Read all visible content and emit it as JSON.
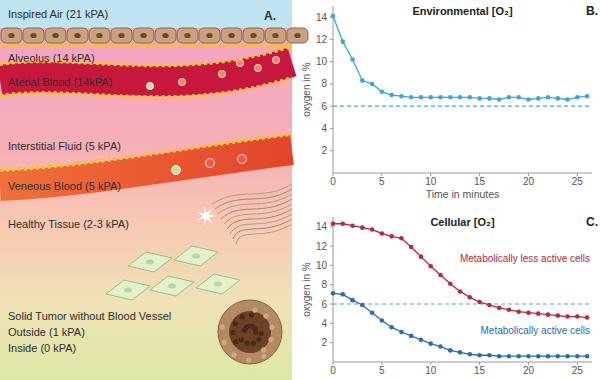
{
  "diagram": {
    "panel_label": "A.",
    "labels": [
      "Inspired Air (21 kPA)",
      "Alveolus (14 kPA)",
      "Aterial Blood (14kPA)",
      "Interstitial Fluid (5 kPA)",
      "Veneous Blood (5 kPA)",
      "Healthy Tissue (2-3 kPA)",
      "Solid Tumor without Blood Vessel",
      "Outside (1 kPA)",
      "Inside (0 kPA)"
    ]
  },
  "chart_data": [
    {
      "type": "line",
      "panel_label": "B.",
      "title": "Environmental [O₂]",
      "x_label": "Time in minutes",
      "y_label": "oxygen in %",
      "x": [
        0,
        1,
        2,
        3,
        4,
        5,
        6,
        7,
        8,
        9,
        10,
        11,
        12,
        13,
        14,
        15,
        16,
        17,
        18,
        19,
        20,
        21,
        22,
        23,
        24,
        25,
        26
      ],
      "series": [
        {
          "color": "#3aa6dd",
          "marker": "circle",
          "values": [
            14.1,
            11.8,
            10.2,
            8.3,
            8.0,
            7.3,
            7.0,
            6.9,
            6.8,
            6.8,
            6.8,
            6.8,
            6.8,
            6.8,
            6.8,
            6.7,
            6.7,
            6.6,
            6.8,
            6.8,
            6.6,
            6.7,
            6.8,
            6.7,
            6.6,
            6.8,
            6.9
          ]
        }
      ],
      "reference_line": {
        "value": 6,
        "color": "#4aa8d8",
        "line_style": "dashed"
      },
      "xlim": [
        0,
        26.5
      ],
      "xticks": [
        0,
        5,
        10,
        15,
        20,
        25
      ],
      "ylim": [
        0,
        15
      ],
      "yticks": [
        2,
        4,
        6,
        8,
        10,
        12,
        14
      ],
      "grid": false
    },
    {
      "type": "line",
      "panel_label": "C.",
      "title": "Cellular [O₂]",
      "y_label": "oxygen in %",
      "x": [
        0,
        1,
        2,
        3,
        4,
        5,
        6,
        7,
        8,
        9,
        10,
        11,
        12,
        13,
        14,
        15,
        16,
        17,
        18,
        19,
        20,
        21,
        22,
        23,
        24,
        25,
        26
      ],
      "series": [
        {
          "name": "Metabolically less active cells",
          "color": "#b8283f",
          "marker": "circle",
          "values": [
            14.3,
            14.3,
            14.1,
            13.9,
            13.7,
            13.3,
            13.0,
            12.8,
            11.9,
            10.9,
            9.9,
            9.0,
            8.1,
            7.3,
            6.7,
            6.2,
            5.9,
            5.6,
            5.4,
            5.2,
            5.1,
            5.0,
            4.9,
            4.8,
            4.7,
            4.7,
            4.6
          ]
        },
        {
          "name": "Metabolically active cells",
          "color": "#2a6cb4",
          "marker": "circle",
          "values": [
            7.1,
            7.0,
            6.4,
            5.9,
            5.1,
            4.3,
            3.6,
            3.1,
            2.7,
            2.3,
            1.9,
            1.6,
            1.2,
            1.0,
            0.8,
            0.7,
            0.7,
            0.6,
            0.6,
            0.6,
            0.6,
            0.6,
            0.6,
            0.6,
            0.6,
            0.6,
            0.6
          ]
        }
      ],
      "reference_line": {
        "value": 6,
        "color": "#4aa8d8",
        "line_style": "dashed"
      },
      "xlim": [
        0,
        26.5
      ],
      "xticks": [
        0,
        5,
        10,
        15,
        20,
        25
      ],
      "ylim": [
        0,
        15
      ],
      "yticks": [
        2,
        4,
        6,
        8,
        10,
        12,
        14
      ],
      "grid": false
    }
  ]
}
